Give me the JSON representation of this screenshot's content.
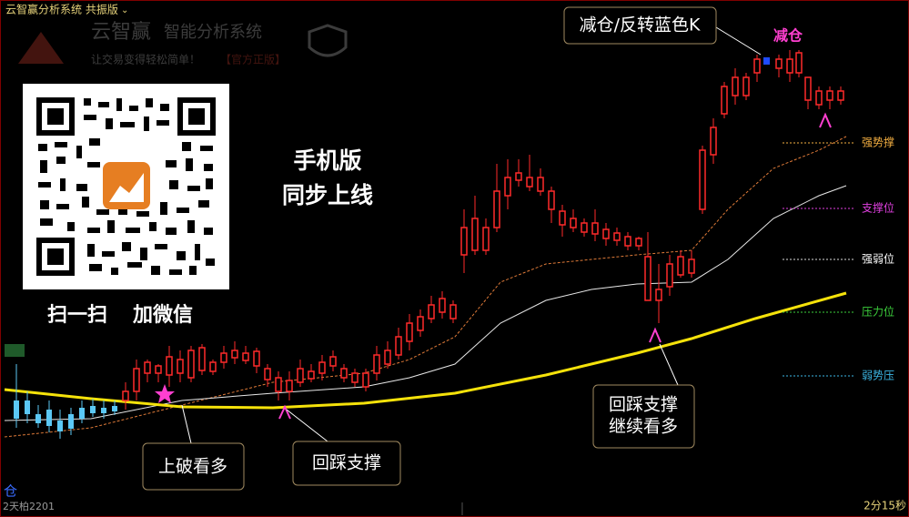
{
  "window": {
    "title": "云智赢分析系统 共振版"
  },
  "watermark": {
    "brand": "云智赢",
    "product": "智能分析系统",
    "slogan": "让交易变得轻松简单！",
    "tag": "【官方正版】"
  },
  "promo": {
    "scan": "扫一扫",
    "wechat": "加微信",
    "line1": "手机版",
    "line2": "同步上线"
  },
  "levels": [
    "强势撑",
    "支撑位",
    "强弱位",
    "压力位",
    "弱势压"
  ],
  "annotations": {
    "reduce_box": "减仓/反转蓝色K",
    "reduce": "减仓",
    "breakout": "上破看多",
    "pullback": "回踩支撑",
    "pullback2_line1": "回踩支撑",
    "pullback2_line2": "继续看多"
  },
  "status": {
    "position": "仓",
    "left": "2天柏2201",
    "right": "2分15秒"
  }
}
